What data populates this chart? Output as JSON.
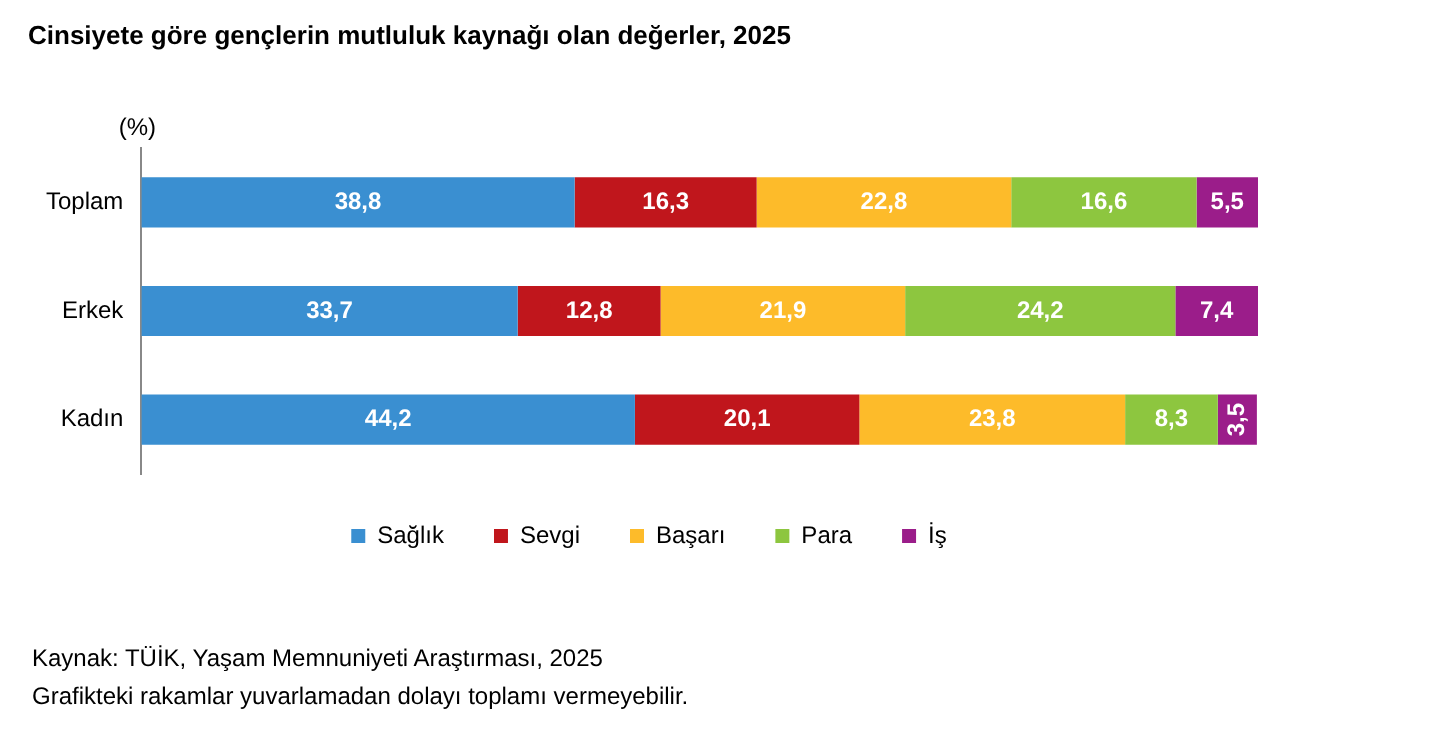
{
  "chart_data": {
    "type": "bar",
    "orientation": "horizontal",
    "stacked": true,
    "title": "Cinsiyete göre gençlerin mutluluk kaynağı olan değerler, 2025",
    "ylabel": "(%)",
    "categories": [
      "Toplam",
      "Erkek",
      "Kadın"
    ],
    "series": [
      {
        "name": "Sağlık",
        "color": "#3a8fd1",
        "values": [
          38.8,
          33.7,
          44.2
        ],
        "value_labels": [
          "38,8",
          "33,7",
          "44,2"
        ]
      },
      {
        "name": "Sevgi",
        "color": "#c0161c",
        "values": [
          16.3,
          12.8,
          20.1
        ],
        "value_labels": [
          "16,3",
          "12,8",
          "20,1"
        ]
      },
      {
        "name": "Başarı",
        "color": "#fdbb2a",
        "values": [
          22.8,
          21.9,
          23.8
        ],
        "value_labels": [
          "22,8",
          "21,9",
          "23,8"
        ]
      },
      {
        "name": "Para",
        "color": "#8dc63f",
        "values": [
          16.6,
          24.2,
          8.3
        ],
        "value_labels": [
          "16,6",
          "24,2",
          "8,3"
        ]
      },
      {
        "name": "İş",
        "color": "#9b1d8a",
        "values": [
          5.5,
          7.4,
          3.5
        ],
        "value_labels": [
          "5,5",
          "7,4",
          "3,5"
        ]
      }
    ],
    "xlim": [
      0,
      100
    ],
    "tick_labels": "y",
    "grid": false,
    "legend": "bottom",
    "annotations": [
      "Kaynak: TÜİK, Yaşam Memnuniyeti Araştırması, 2025",
      "Grafikteki rakamlar yuvarlamadan dolayı toplamı vermeyebilir."
    ]
  }
}
